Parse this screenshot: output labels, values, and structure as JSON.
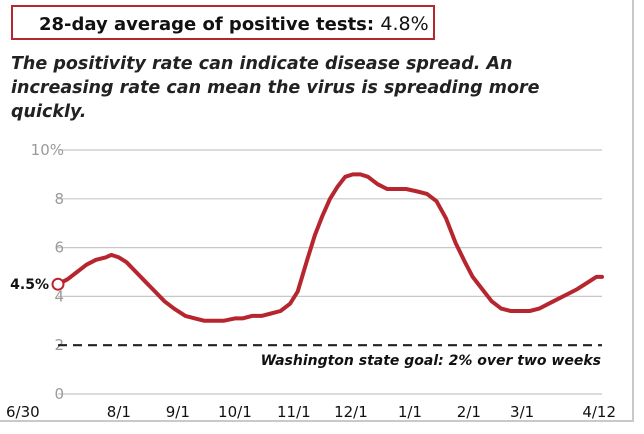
{
  "headline": {
    "label": "28-day average of positive tests:",
    "value": "4.8%"
  },
  "subtitle": "The positivity rate can indicate disease spread. An increasing rate can mean the virus is spreading more quickly.",
  "colors": {
    "line": "#b7262f",
    "grid": "#c8c8c8",
    "goal": "#222222"
  },
  "chart_data": {
    "type": "line",
    "title": "",
    "xlabel": "",
    "ylabel": "",
    "ylim": [
      0,
      10
    ],
    "y_ticks": [
      0,
      2,
      4,
      6,
      8,
      10
    ],
    "y_tick_labels": [
      "0",
      "2",
      "4",
      "6",
      "8",
      "10%"
    ],
    "x_tick_labels": [
      "6/30",
      "8/1",
      "9/1",
      "10/1",
      "11/1",
      "12/1",
      "1/1",
      "2/1",
      "3/1",
      "4/12"
    ],
    "x_ticks": [
      "2020-06-30",
      "2020-08-01",
      "2020-09-01",
      "2020-10-01",
      "2020-11-01",
      "2020-12-01",
      "2021-01-01",
      "2021-02-01",
      "2021-03-01",
      "2021-04-12"
    ],
    "grid": true,
    "start_label": "4.5%",
    "goal": {
      "value": 2,
      "label": "Washington state goal: 2% over two weeks"
    },
    "series": [
      {
        "x": [
          "2020-06-30",
          "2020-07-05",
          "2020-07-10",
          "2020-07-15",
          "2020-07-20",
          "2020-07-25",
          "2020-07-28",
          "2020-08-01",
          "2020-08-05",
          "2020-08-10",
          "2020-08-15",
          "2020-08-20",
          "2020-08-25",
          "2020-08-30",
          "2020-09-05",
          "2020-09-10",
          "2020-09-15",
          "2020-09-20",
          "2020-09-25",
          "2020-10-01",
          "2020-10-05",
          "2020-10-10",
          "2020-10-15",
          "2020-10-20",
          "2020-10-25",
          "2020-10-30",
          "2020-11-03",
          "2020-11-08",
          "2020-11-12",
          "2020-11-16",
          "2020-11-20",
          "2020-11-24",
          "2020-11-28",
          "2020-12-02",
          "2020-12-06",
          "2020-12-10",
          "2020-12-15",
          "2020-12-20",
          "2020-12-25",
          "2020-12-30",
          "2021-01-05",
          "2021-01-10",
          "2021-01-15",
          "2021-01-20",
          "2021-01-25",
          "2021-01-30",
          "2021-02-03",
          "2021-02-08",
          "2021-02-13",
          "2021-02-18",
          "2021-02-23",
          "2021-03-01",
          "2021-03-05",
          "2021-03-10",
          "2021-03-15",
          "2021-03-20",
          "2021-03-25",
          "2021-03-30",
          "2021-04-05",
          "2021-04-09",
          "2021-04-12"
        ],
        "values": [
          4.5,
          4.7,
          5.0,
          5.3,
          5.5,
          5.6,
          5.7,
          5.6,
          5.4,
          5.0,
          4.6,
          4.2,
          3.8,
          3.5,
          3.2,
          3.1,
          3.0,
          3.0,
          3.0,
          3.1,
          3.1,
          3.2,
          3.2,
          3.3,
          3.4,
          3.7,
          4.2,
          5.5,
          6.5,
          7.3,
          8.0,
          8.5,
          8.9,
          9.0,
          9.0,
          8.9,
          8.6,
          8.4,
          8.4,
          8.4,
          8.3,
          8.2,
          7.9,
          7.2,
          6.2,
          5.4,
          4.8,
          4.3,
          3.8,
          3.5,
          3.4,
          3.4,
          3.4,
          3.5,
          3.7,
          3.9,
          4.1,
          4.3,
          4.6,
          4.8,
          4.8
        ]
      }
    ]
  }
}
